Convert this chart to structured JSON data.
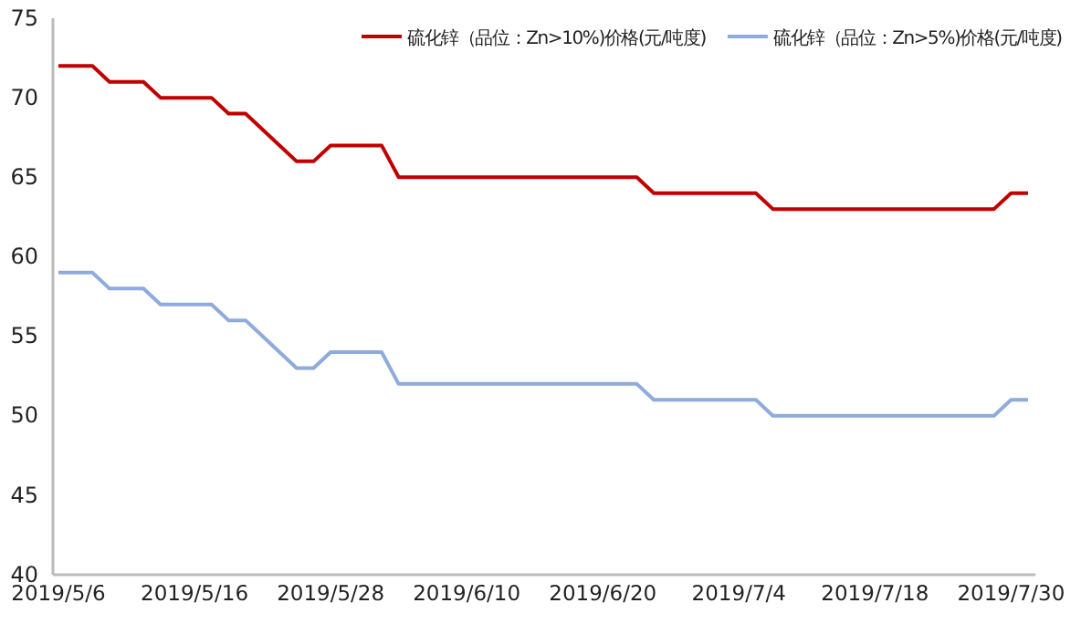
{
  "chart_data": {
    "type": "line",
    "categories": [
      "2019/5/6",
      null,
      null,
      null,
      null,
      null,
      null,
      null,
      "2019/5/16",
      null,
      null,
      null,
      null,
      null,
      null,
      null,
      "2019/5/28",
      null,
      null,
      null,
      null,
      null,
      null,
      null,
      "2019/6/10",
      null,
      null,
      null,
      null,
      null,
      null,
      null,
      "2019/6/20",
      null,
      null,
      null,
      null,
      null,
      null,
      null,
      "2019/7/4",
      null,
      null,
      null,
      null,
      null,
      null,
      null,
      "2019/7/18",
      null,
      null,
      null,
      null,
      null,
      null,
      null,
      "2019/7/30",
      null
    ],
    "series": [
      {
        "name": "硫化锌（品位：Zn>10%)价格(元/吨度)",
        "color": "#c00000",
        "values": [
          72,
          72,
          72,
          71,
          71,
          71,
          70,
          70,
          70,
          70,
          69,
          69,
          68,
          67,
          66,
          66,
          67,
          67,
          67,
          67,
          65,
          65,
          65,
          65,
          65,
          65,
          65,
          65,
          65,
          65,
          65,
          65,
          65,
          65,
          65,
          64,
          64,
          64,
          64,
          64,
          64,
          64,
          63,
          63,
          63,
          63,
          63,
          63,
          63,
          63,
          63,
          63,
          63,
          63,
          63,
          63,
          64,
          64
        ]
      },
      {
        "name": "硫化锌（品位：Zn>5%)价格(元/吨度)",
        "color": "#8faadc",
        "values": [
          59,
          59,
          59,
          58,
          58,
          58,
          57,
          57,
          57,
          57,
          56,
          56,
          55,
          54,
          53,
          53,
          54,
          54,
          54,
          54,
          52,
          52,
          52,
          52,
          52,
          52,
          52,
          52,
          52,
          52,
          52,
          52,
          52,
          52,
          52,
          51,
          51,
          51,
          51,
          51,
          51,
          51,
          50,
          50,
          50,
          50,
          50,
          50,
          50,
          50,
          50,
          50,
          50,
          50,
          50,
          50,
          51,
          51
        ]
      }
    ],
    "ylim": [
      40,
      75
    ],
    "yticks": [
      40,
      45,
      50,
      55,
      60,
      65,
      70,
      75
    ],
    "legend": "top",
    "grid": false,
    "marker": "none",
    "line_style": "solid"
  }
}
